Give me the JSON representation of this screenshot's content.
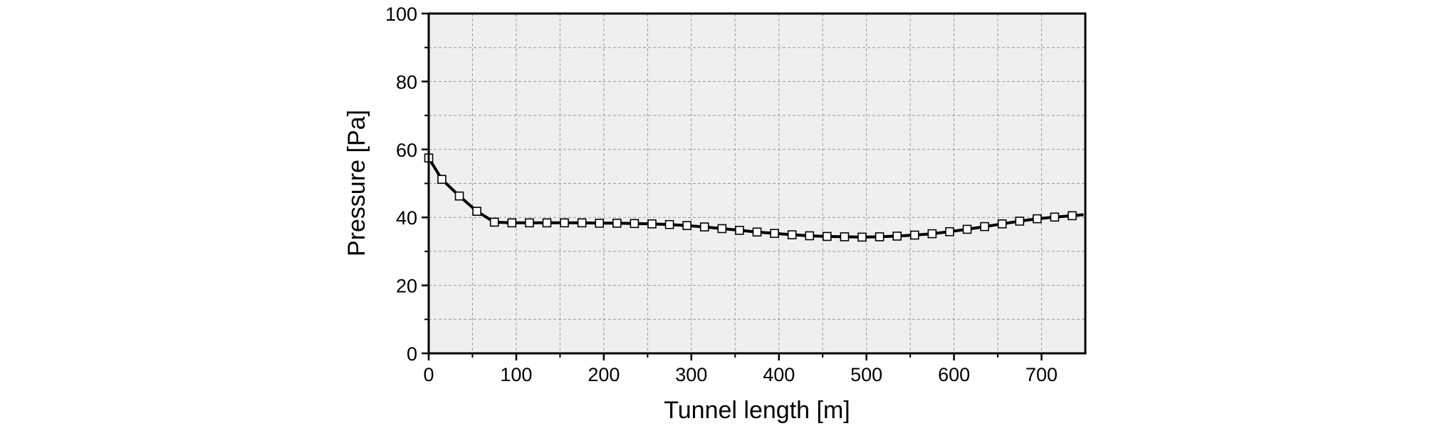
{
  "chart_data": {
    "type": "line",
    "title": "",
    "xlabel": "Tunnel length [m]",
    "ylabel": "Pressure [Pa]",
    "xlim": [
      0,
      750
    ],
    "ylim": [
      0,
      100
    ],
    "x_ticks": [
      0,
      100,
      200,
      300,
      400,
      500,
      600,
      700
    ],
    "y_ticks": [
      0,
      20,
      40,
      60,
      80,
      100
    ],
    "grid": true,
    "legend": "none",
    "colors": {
      "plot_background": "#efefef",
      "line": "#000000",
      "marker_fill": "#ffffff",
      "grid": "#9a9a9a"
    },
    "series": [
      {
        "marker": "open-square",
        "x": [
          0,
          15,
          35,
          55,
          75,
          95,
          115,
          135,
          155,
          175,
          195,
          215,
          235,
          255,
          275,
          295,
          315,
          335,
          355,
          375,
          395,
          415,
          435,
          455,
          475,
          495,
          515,
          535,
          555,
          575,
          595,
          615,
          635,
          655,
          675,
          695,
          715,
          735,
          748
        ],
        "y": [
          57.5,
          51.2,
          46.3,
          41.8,
          38.6,
          38.4,
          38.4,
          38.4,
          38.4,
          38.4,
          38.3,
          38.3,
          38.2,
          38.1,
          37.9,
          37.6,
          37.2,
          36.7,
          36.2,
          35.7,
          35.3,
          34.9,
          34.6,
          34.4,
          34.3,
          34.2,
          34.3,
          34.5,
          34.8,
          35.2,
          35.8,
          36.5,
          37.3,
          38.1,
          38.9,
          39.6,
          40.1,
          40.5,
          40.8
        ],
        "marker_x": [
          0,
          15,
          35,
          55,
          75,
          95,
          115,
          135,
          155,
          175,
          195,
          215,
          235,
          255,
          275,
          295,
          315,
          335,
          355,
          375,
          395,
          415,
          435,
          455,
          475,
          495,
          515,
          535,
          555,
          575,
          595,
          615,
          635,
          655,
          675,
          695,
          715,
          735
        ]
      }
    ]
  }
}
